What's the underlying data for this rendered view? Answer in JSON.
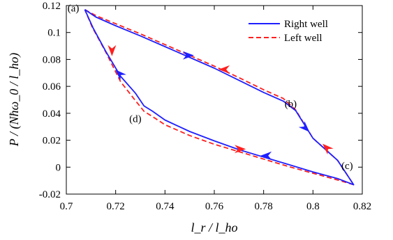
{
  "chart_data": {
    "type": "line",
    "xlabel": "l_r / l_ho",
    "ylabel": "P / (Nħω_0 / l_ho)",
    "xlim": [
      0.7,
      0.82
    ],
    "ylim": [
      -0.02,
      0.12
    ],
    "x_ticks": [
      0.7,
      0.72,
      0.74,
      0.76,
      0.78,
      0.8,
      0.82
    ],
    "x_tick_labels": [
      "0.7",
      "0.72",
      "0.74",
      "0.76",
      "0.78",
      "0.8",
      "0.82"
    ],
    "y_ticks": [
      -0.02,
      0,
      0.02,
      0.04,
      0.06,
      0.08,
      0.1,
      0.12
    ],
    "y_tick_labels": [
      "-0.02",
      "0",
      "0.02",
      "0.04",
      "0.06",
      "0.08",
      "0.1",
      "0.12"
    ],
    "legend_position": "top-right",
    "series": [
      {
        "name": "Right well",
        "color": "#1f1fff",
        "style": "solid",
        "x": [
          0.7075,
          0.712,
          0.72,
          0.73,
          0.74,
          0.75,
          0.76,
          0.77,
          0.78,
          0.788,
          0.793,
          0.8,
          0.81,
          0.8165,
          0.81,
          0.8,
          0.79,
          0.78,
          0.77,
          0.76,
          0.75,
          0.74,
          0.735,
          0.7315,
          0.728,
          0.722,
          0.716,
          0.7108,
          0.7075
        ],
        "y": [
          0.117,
          0.1115,
          0.105,
          0.0975,
          0.0895,
          0.0815,
          0.0735,
          0.0645,
          0.0555,
          0.049,
          0.042,
          0.0215,
          0.005,
          -0.013,
          -0.0085,
          -0.0035,
          0.002,
          0.0075,
          0.013,
          0.0195,
          0.0265,
          0.035,
          0.0415,
          0.0455,
          0.055,
          0.0675,
          0.086,
          0.1035,
          0.117
        ]
      },
      {
        "name": "Left well",
        "color": "#ff1f1f",
        "style": "dashed",
        "x": [
          0.7075,
          0.712,
          0.72,
          0.73,
          0.74,
          0.75,
          0.76,
          0.77,
          0.78,
          0.788,
          0.793,
          0.8,
          0.81,
          0.8165,
          0.81,
          0.8,
          0.79,
          0.78,
          0.77,
          0.76,
          0.75,
          0.74,
          0.735,
          0.7315,
          0.728,
          0.722,
          0.716,
          0.7105,
          0.7075
        ],
        "y": [
          0.117,
          0.1125,
          0.1065,
          0.099,
          0.091,
          0.083,
          0.075,
          0.0665,
          0.0575,
          0.051,
          0.0425,
          0.0215,
          0.005,
          -0.013,
          -0.0095,
          -0.0045,
          0.0005,
          0.006,
          0.0115,
          0.017,
          0.0235,
          0.0315,
          0.0375,
          0.0415,
          0.0495,
          0.0635,
          0.0855,
          0.104,
          0.117
        ]
      }
    ],
    "arrows": [
      {
        "series": "Right well",
        "x": 0.7215,
        "y": 0.0695,
        "direction": "up-left"
      },
      {
        "series": "Right well",
        "x": 0.7495,
        "y": 0.083,
        "direction": "right"
      },
      {
        "series": "Right well",
        "x": 0.797,
        "y": 0.029,
        "direction": "down-right"
      },
      {
        "series": "Right well",
        "x": 0.781,
        "y": 0.0085,
        "direction": "left"
      },
      {
        "series": "Left well",
        "x": 0.7185,
        "y": 0.0865,
        "direction": "down"
      },
      {
        "series": "Left well",
        "x": 0.764,
        "y": 0.0725,
        "direction": "left"
      },
      {
        "series": "Left well",
        "x": 0.8055,
        "y": 0.0145,
        "direction": "up-left"
      },
      {
        "series": "Left well",
        "x": 0.7705,
        "y": 0.0135,
        "direction": "right"
      }
    ],
    "annotations": [
      {
        "label": "(a)",
        "x": 0.7005,
        "y": 0.1155
      },
      {
        "label": "(b)",
        "x": 0.7885,
        "y": 0.0445
      },
      {
        "label": "(c)",
        "x": 0.8115,
        "y": -0.0015
      },
      {
        "label": "(d)",
        "x": 0.7255,
        "y": 0.0335
      }
    ]
  }
}
